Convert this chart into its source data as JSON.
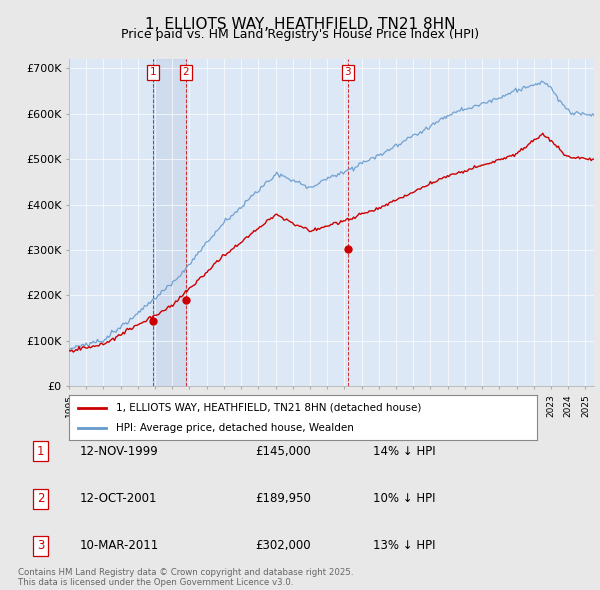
{
  "title": "1, ELLIOTS WAY, HEATHFIELD, TN21 8HN",
  "subtitle": "Price paid vs. HM Land Registry's House Price Index (HPI)",
  "title_fontsize": 11,
  "subtitle_fontsize": 9,
  "background_color": "#e8e8e8",
  "plot_bg_color": "#dce8f5",
  "ylabel": "",
  "ylim": [
    0,
    720000
  ],
  "yticks": [
    0,
    100000,
    200000,
    300000,
    400000,
    500000,
    600000,
    700000
  ],
  "ytick_labels": [
    "£0",
    "£100K",
    "£200K",
    "£300K",
    "£400K",
    "£500K",
    "£600K",
    "£700K"
  ],
  "sale_dates": [
    1999.87,
    2001.79,
    2011.19
  ],
  "sale_prices": [
    145000,
    189950,
    302000
  ],
  "sale_labels": [
    "1",
    "2",
    "3"
  ],
  "marker_color": "#cc0000",
  "line_color": "#cc0000",
  "hpi_color": "#6699cc",
  "legend_sale_label": "1, ELLIOTS WAY, HEATHFIELD, TN21 8HN (detached house)",
  "legend_hpi_label": "HPI: Average price, detached house, Wealden",
  "table_entries": [
    {
      "label": "1",
      "date": "12-NOV-1999",
      "price": "£145,000",
      "pct": "14% ↓ HPI"
    },
    {
      "label": "2",
      "date": "12-OCT-2001",
      "price": "£189,950",
      "pct": "10% ↓ HPI"
    },
    {
      "label": "3",
      "date": "10-MAR-2011",
      "price": "£302,000",
      "pct": "13% ↓ HPI"
    }
  ],
  "footnote": "Contains HM Land Registry data © Crown copyright and database right 2025.\nThis data is licensed under the Open Government Licence v3.0.",
  "xmin": 1995.0,
  "xmax": 2025.5
}
